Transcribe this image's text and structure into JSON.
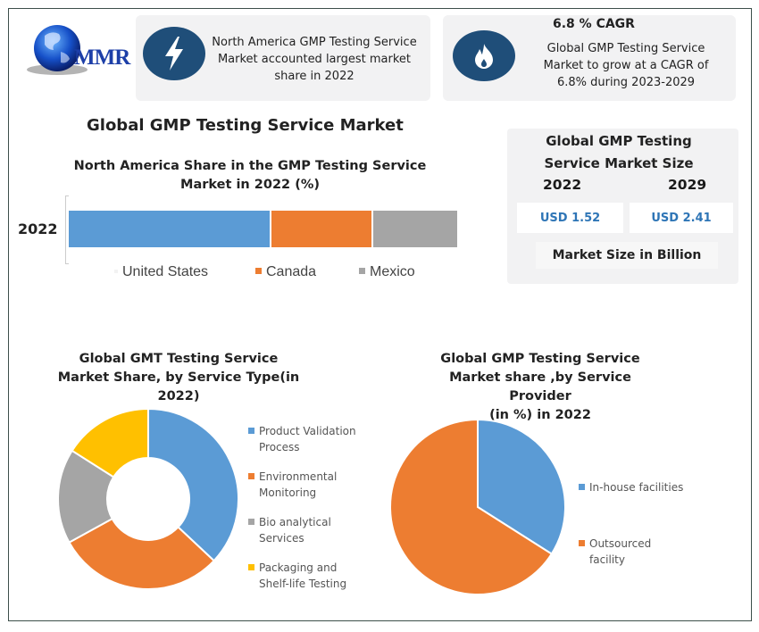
{
  "brand": {
    "logo_text": "MMR"
  },
  "header": {
    "card1": {
      "icon": "lightning-icon",
      "lines": [
        "North America GMP Testing Service",
        "Market accounted largest market",
        "share in 2022"
      ]
    },
    "card2": {
      "icon": "flame-icon",
      "headline": "6.8 % CAGR",
      "lines": [
        "Global GMP Testing Service",
        "Market to grow at a CAGR of",
        "6.8% during 2023-2029"
      ]
    }
  },
  "main_title": "Global GMP Testing Service Market",
  "market_size": {
    "title_lines": [
      "Global GMP Testing",
      "Service Market Size"
    ],
    "year_a": "2022",
    "year_b": "2029",
    "value_a": "USD 1.52",
    "value_b": "USD 2.41",
    "unit_label": "Market Size in Billion"
  },
  "colors": {
    "blue": "#5b9bd5",
    "orange": "#ed7d31",
    "gray": "#a5a5a5",
    "yellow": "#ffc000",
    "navy": "#1f4e79"
  },
  "chart_data": [
    {
      "type": "bar",
      "orientation": "horizontal-stacked",
      "title": "North America Share in the GMP Testing Service Market in 2022 (%)",
      "title_lines": [
        "North America Share in the GMP Testing Service",
        "Market in 2022 (%)"
      ],
      "categories": [
        "2022"
      ],
      "series": [
        {
          "name": "United States",
          "values": [
            52
          ]
        },
        {
          "name": "Canada",
          "values": [
            26
          ]
        },
        {
          "name": "Mexico",
          "values": [
            22
          ]
        }
      ],
      "legend_position": "bottom",
      "grid": false
    },
    {
      "type": "pie",
      "variant": "donut",
      "title": "Global GMT Testing Service Market Share, by Service Type(in 2022)",
      "title_lines": [
        "Global GMT Testing Service",
        "Market Share, by Service Type(in",
        "2022)"
      ],
      "categories": [
        "Product Validation Process",
        "Environmental Monitoring",
        "Bio analytical Services",
        "Packaging and Shelf-life Testing"
      ],
      "legend_lines": [
        [
          "Product Validation",
          "Process"
        ],
        [
          "Environmental",
          "Monitoring"
        ],
        [
          "Bio analytical",
          "Services"
        ],
        [
          "Packaging and",
          "Shelf-life Testing"
        ]
      ],
      "values": [
        37,
        30,
        17,
        16
      ],
      "legend_position": "right"
    },
    {
      "type": "pie",
      "title": "Global GMP Testing Service Market share ,by Service Provider (in %) in 2022",
      "title_lines": [
        "Global GMP Testing Service",
        "Market share ,by Service Provider",
        "(in %) in 2022"
      ],
      "categories": [
        "In-house facilities",
        "Outsourced facility"
      ],
      "legend_lines": [
        [
          "In-house facilities"
        ],
        [
          "Outsourced",
          "facility"
        ]
      ],
      "values": [
        34,
        66
      ],
      "legend_position": "right"
    }
  ]
}
